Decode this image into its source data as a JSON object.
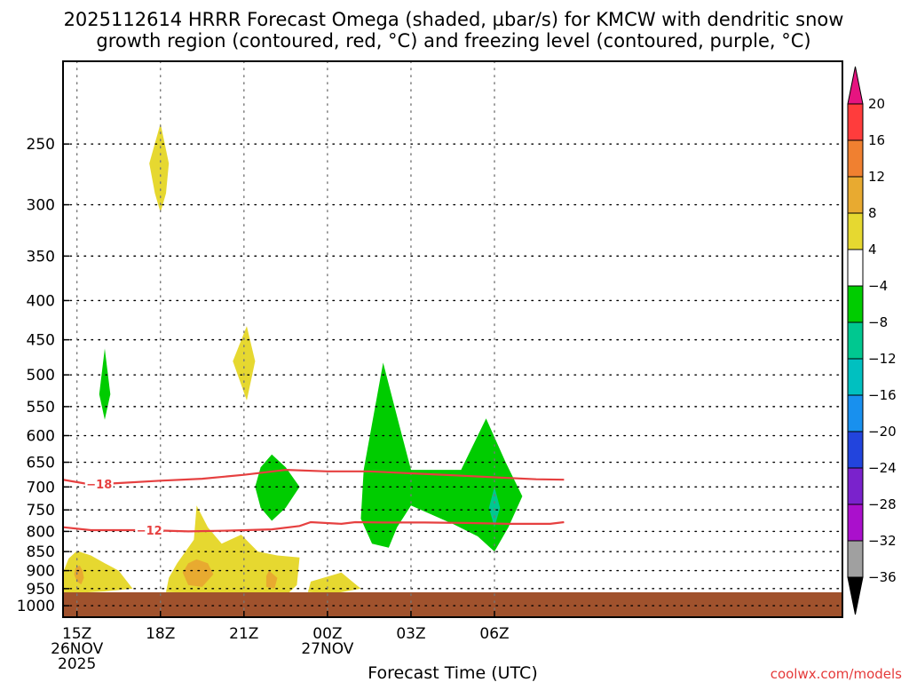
{
  "title_line1": "2025112614 HRRR Forecast Omega (shaded, µbar/s) for KMCW with dendritic snow",
  "title_line2": "growth region (contoured, red, °C) and freezing level (contoured, purple, °C)",
  "credit": "coolwx.com/models",
  "chart_data": {
    "type": "contour-time-height",
    "title": "2025112614 HRRR Forecast Omega (shaded, µbar/s) for KMCW with dendritic snow growth region (contoured, red, °C) and freezing level (contoured, purple, °C)",
    "xlabel": "Forecast Time (UTC)",
    "ylabel": "",
    "x_unit": "hours since 2025-11-26 14Z",
    "xlim": [
      0.5,
      28.5
    ],
    "y_scale": "log-pressure (inverted)",
    "ylim": [
      1035,
      195
    ],
    "grid": true,
    "x_ticks": [
      {
        "x": 1,
        "lines": [
          "15Z",
          "26NOV",
          "2025"
        ]
      },
      {
        "x": 4,
        "lines": [
          "18Z"
        ]
      },
      {
        "x": 7,
        "lines": [
          "21Z"
        ]
      },
      {
        "x": 10,
        "lines": [
          "00Z",
          "27NOV"
        ]
      },
      {
        "x": 13,
        "lines": [
          "03Z"
        ]
      },
      {
        "x": 16,
        "lines": [
          "06Z"
        ]
      }
    ],
    "y_ticks": [
      250,
      300,
      350,
      400,
      450,
      500,
      550,
      600,
      650,
      700,
      750,
      800,
      850,
      900,
      950,
      1000
    ],
    "colorbar": {
      "unit": "µbar/s",
      "levels": [
        20,
        16,
        12,
        8,
        4,
        -4,
        -8,
        -12,
        -16,
        -20,
        -24,
        -28,
        -32,
        -36
      ],
      "colors": [
        "#ff3c3c",
        "#f08030",
        "#e8aa30",
        "#e6d830",
        "#ffffff",
        "#00cc00",
        "#00c890",
        "#00c0c0",
        "#1890ee",
        "#2244dd",
        "#7a22cc",
        "#aa10cc",
        "#a0a0a0"
      ],
      "over_color": "#e61480",
      "under_color": "#000000"
    },
    "shaded_areas": [
      {
        "level": "4 to 8",
        "color": "#e6d830",
        "points": [
          [
            1.0,
            848
          ],
          [
            1.5,
            860
          ],
          [
            2.0,
            880
          ],
          [
            2.5,
            900
          ],
          [
            3.0,
            950
          ],
          [
            2.0,
            958
          ],
          [
            1.0,
            962
          ],
          [
            0.5,
            960
          ],
          [
            0.5,
            905
          ],
          [
            0.7,
            868
          ]
        ]
      },
      {
        "level": "8 to 12",
        "color": "#e8aa30",
        "points": [
          [
            1.1,
            886
          ],
          [
            1.2,
            900
          ],
          [
            1.25,
            920
          ],
          [
            1.15,
            938
          ],
          [
            1.0,
            930
          ],
          [
            0.9,
            910
          ],
          [
            0.95,
            893
          ]
        ]
      },
      {
        "level": "4 to 8",
        "color": "#e6d830",
        "points": [
          [
            4.0,
            235
          ],
          [
            4.3,
            265
          ],
          [
            4.2,
            290
          ],
          [
            4.0,
            307
          ],
          [
            3.8,
            290
          ],
          [
            3.6,
            265
          ]
        ]
      },
      {
        "level": "4 to 8",
        "color": "#e6d830",
        "points": [
          [
            5.3,
            740
          ],
          [
            5.7,
            790
          ],
          [
            6.2,
            830
          ],
          [
            6.9,
            808
          ],
          [
            7.5,
            850
          ],
          [
            8.2,
            860
          ],
          [
            9.0,
            865
          ],
          [
            8.9,
            940
          ],
          [
            8.5,
            970
          ],
          [
            5.5,
            962
          ],
          [
            4.2,
            960
          ],
          [
            4.3,
            920
          ],
          [
            4.6,
            880
          ],
          [
            5.2,
            820
          ]
        ]
      },
      {
        "level": "8 to 12",
        "color": "#e8aa30",
        "points": [
          [
            5.3,
            870
          ],
          [
            5.7,
            880
          ],
          [
            5.9,
            910
          ],
          [
            5.5,
            945
          ],
          [
            5.0,
            940
          ],
          [
            4.8,
            905
          ],
          [
            5.0,
            880
          ]
        ]
      },
      {
        "level": "8 to 12",
        "color": "#e8aa30",
        "points": [
          [
            7.9,
            900
          ],
          [
            8.2,
            920
          ],
          [
            8.1,
            950
          ],
          [
            7.8,
            945
          ],
          [
            7.8,
            915
          ]
        ]
      },
      {
        "level": "4 to 8",
        "color": "#e6d830",
        "points": [
          [
            7.1,
            432
          ],
          [
            7.4,
            480
          ],
          [
            7.1,
            540
          ],
          [
            6.6,
            480
          ]
        ]
      },
      {
        "level": "4 to 8",
        "color": "#e6d830",
        "points": [
          [
            9.4,
            930
          ],
          [
            10.5,
            905
          ],
          [
            11.2,
            950
          ],
          [
            10.3,
            963
          ],
          [
            9.3,
            960
          ]
        ]
      },
      {
        "level": "-4 to -8",
        "color": "#00cc00",
        "points": [
          [
            2.0,
            462
          ],
          [
            2.2,
            530
          ],
          [
            2.0,
            572
          ],
          [
            1.8,
            530
          ]
        ]
      },
      {
        "level": "-4 to -8",
        "color": "#00cc00",
        "points": [
          [
            8.0,
            635
          ],
          [
            8.5,
            660
          ],
          [
            9.0,
            700
          ],
          [
            8.5,
            745
          ],
          [
            8.0,
            775
          ],
          [
            7.6,
            745
          ],
          [
            7.4,
            700
          ],
          [
            7.6,
            660
          ]
        ]
      },
      {
        "level": "-4 to -8",
        "color": "#00cc00",
        "points": [
          [
            12.0,
            482
          ],
          [
            12.6,
            585
          ],
          [
            13.0,
            665
          ],
          [
            14.8,
            665
          ],
          [
            15.7,
            570
          ],
          [
            16.4,
            650
          ],
          [
            17.0,
            720
          ],
          [
            16.5,
            790
          ],
          [
            16.0,
            850
          ],
          [
            15.4,
            812
          ],
          [
            14.5,
            782
          ],
          [
            13.0,
            740
          ],
          [
            12.5,
            790
          ],
          [
            12.2,
            840
          ],
          [
            11.6,
            830
          ],
          [
            11.2,
            770
          ],
          [
            11.3,
            665
          ]
        ]
      },
      {
        "level": "-8 to -12",
        "color": "#00c890",
        "points": [
          [
            16.0,
            700
          ],
          [
            16.2,
            745
          ],
          [
            16.0,
            790
          ],
          [
            15.8,
            745
          ]
        ]
      }
    ],
    "contours": [
      {
        "name": "-18",
        "color": "#e64040",
        "label_x": 1.8,
        "x": [
          0.5,
          1.5,
          2.5,
          4.0,
          5.5,
          7.0,
          8.5,
          10.0,
          11.5,
          13.0,
          14.5,
          16.0,
          17.5,
          18.5
        ],
        "p": [
          685,
          695,
          692,
          687,
          683,
          675,
          665,
          668,
          668,
          672,
          676,
          680,
          684,
          685
        ]
      },
      {
        "name": "-12",
        "color": "#e64040",
        "label_x": 3.6,
        "x": [
          0.5,
          1.5,
          2.5,
          3.5,
          5.0,
          6.5,
          8.0,
          9.0,
          9.4,
          10.5,
          11.0,
          12.0,
          13.5,
          15.0,
          16.5,
          18.0,
          18.5
        ],
        "p": [
          790,
          797,
          797,
          797,
          800,
          798,
          795,
          787,
          778,
          782,
          778,
          779,
          779,
          780,
          782,
          782,
          778
        ]
      }
    ]
  }
}
